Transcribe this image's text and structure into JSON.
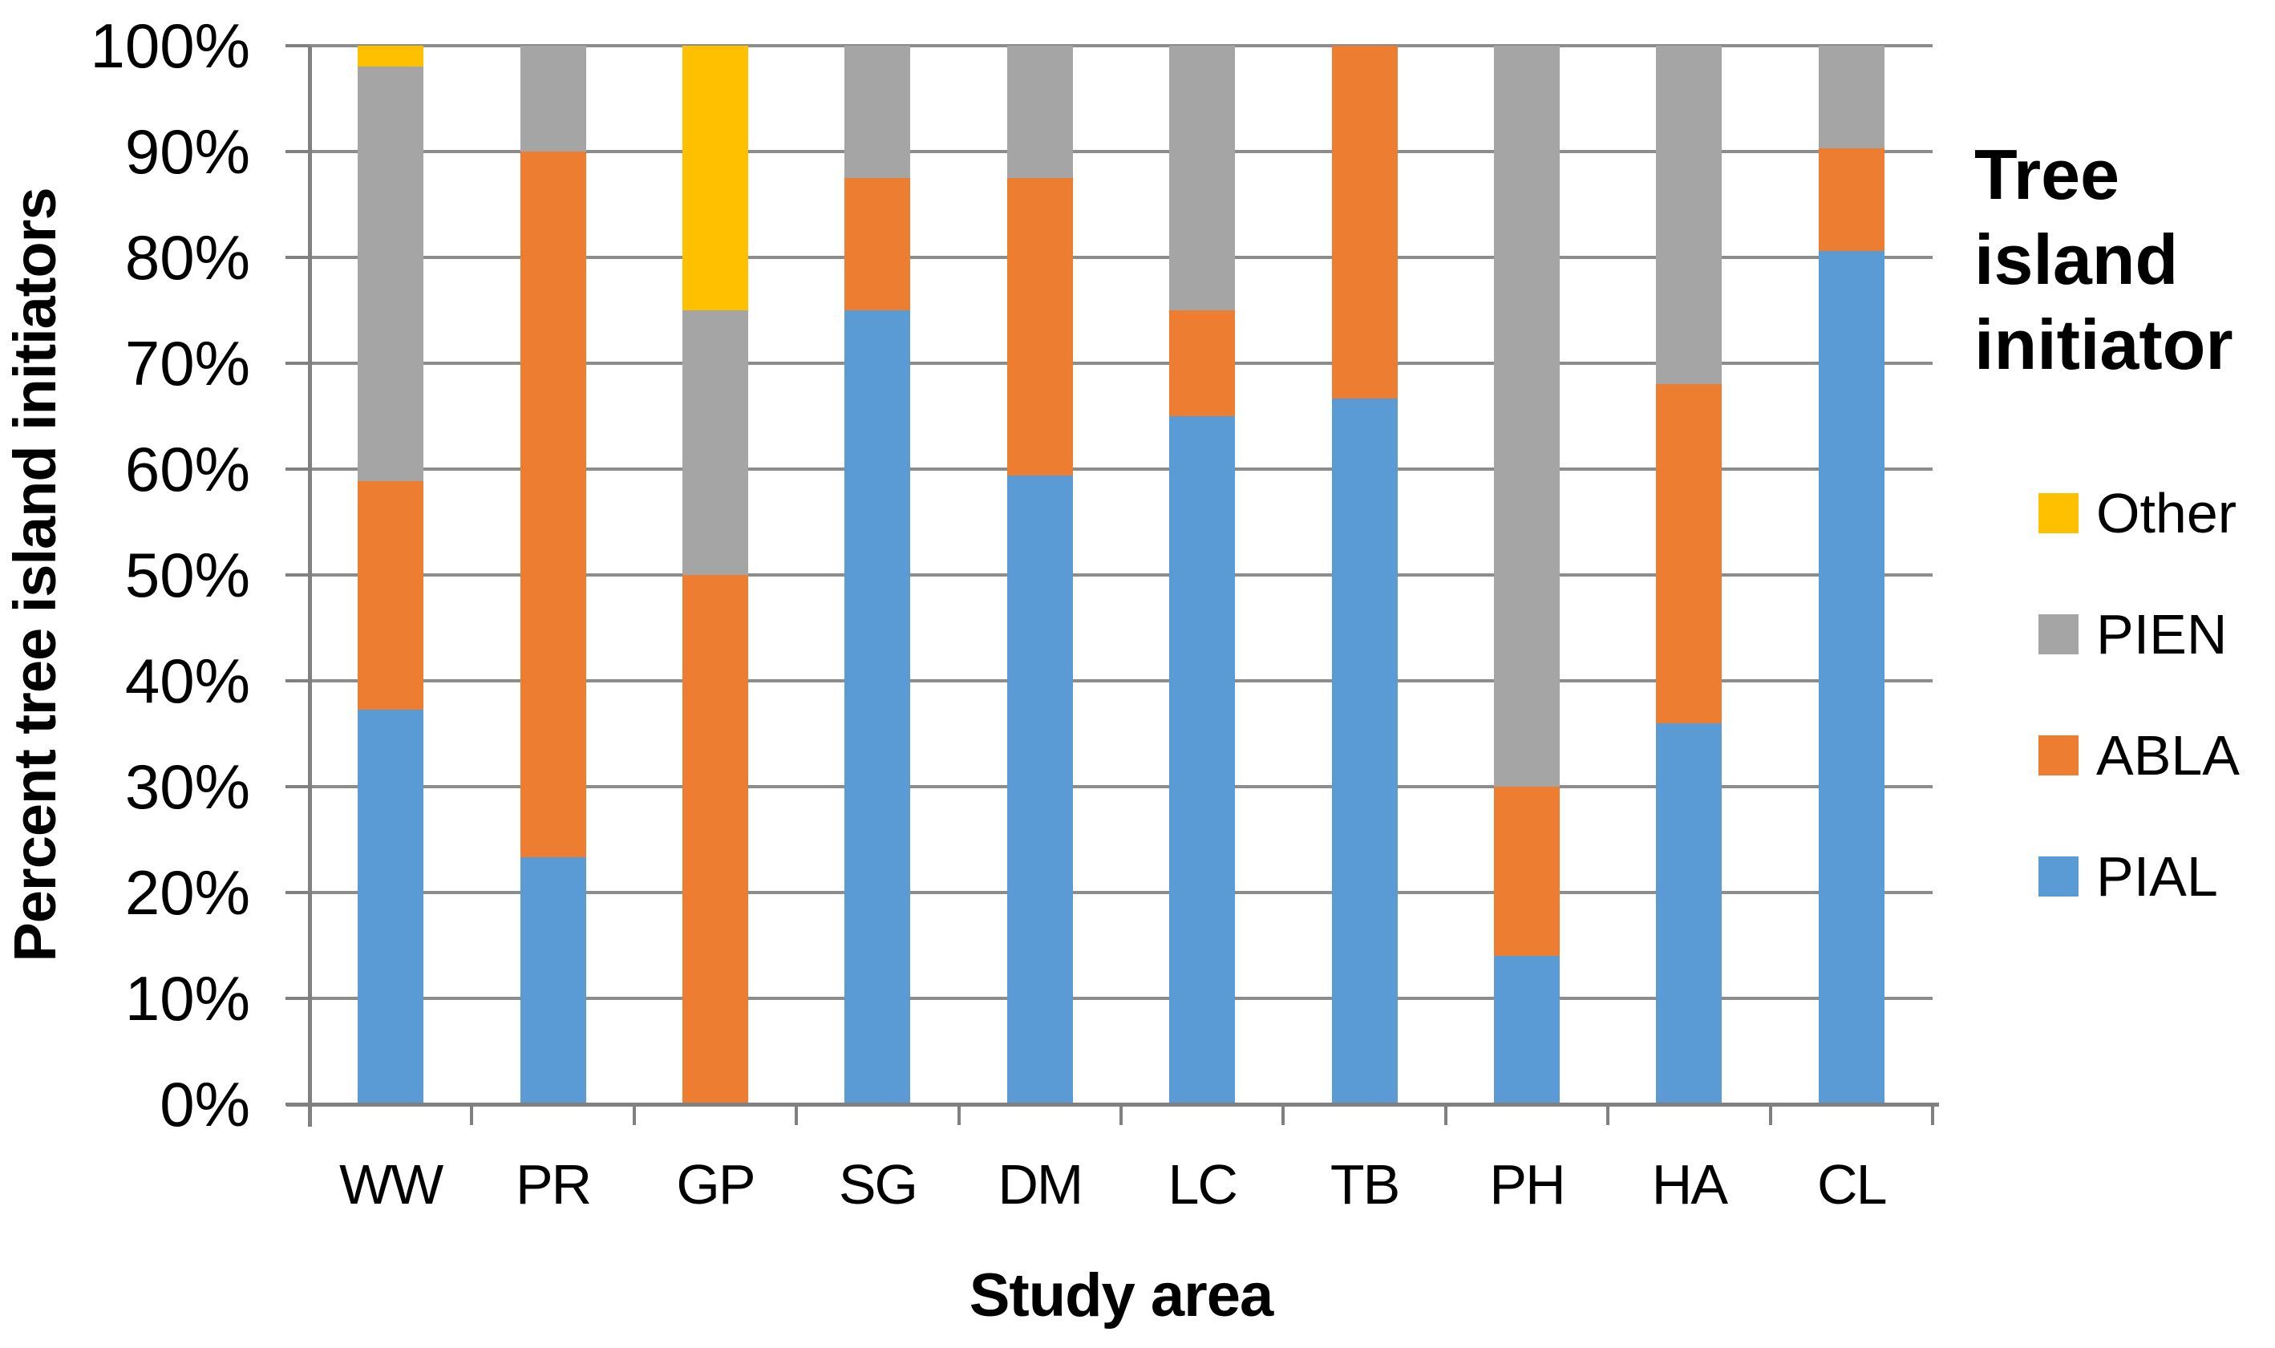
{
  "figure": {
    "background": "#FFFFFF"
  },
  "y_axis": {
    "title": "Percent tree island initiators",
    "tick_labels": [
      "100%",
      "90%",
      "80%",
      "70%",
      "60%",
      "50%",
      "40%",
      "30%",
      "20%",
      "10%",
      "0%"
    ]
  },
  "x_axis": {
    "title": "Study area",
    "tick_labels": [
      "WW",
      "PR",
      "GP",
      "SG",
      "DM",
      "LC",
      "TB",
      "PH",
      "HA",
      "CL"
    ]
  },
  "legend": {
    "title": "Tree island initiator",
    "items": [
      {
        "label": "Other",
        "color": "#FFC000"
      },
      {
        "label": "PIEN",
        "color": "#A5A5A5"
      },
      {
        "label": "ABLA",
        "color": "#ED7D31"
      },
      {
        "label": "PIAL",
        "color": "#5B9BD5"
      }
    ]
  },
  "colors": {
    "gridline": "#8C8C8C",
    "axis": "#808080",
    "text": "#000000"
  },
  "chart_data": {
    "type": "bar",
    "subtype": "100%-stacked-column",
    "title": "",
    "xlabel": "Study area",
    "ylabel": "Percent tree island initiators",
    "categories": [
      "WW",
      "PR",
      "GP",
      "SG",
      "DM",
      "LC",
      "TB",
      "PH",
      "HA",
      "CL"
    ],
    "series": [
      {
        "name": "PIAL",
        "color": "#5B9BD5",
        "values": [
          37.3,
          23.3,
          0,
          75,
          59.4,
          65,
          66.7,
          14,
          36,
          80.6
        ]
      },
      {
        "name": "ABLA",
        "color": "#ED7D31",
        "values": [
          21.6,
          66.7,
          50,
          12.5,
          28.1,
          10,
          33.3,
          16,
          32,
          9.7
        ]
      },
      {
        "name": "PIEN",
        "color": "#A5A5A5",
        "values": [
          39.2,
          10,
          25,
          12.5,
          12.5,
          25,
          0,
          70,
          32,
          9.7
        ]
      },
      {
        "name": "Other",
        "color": "#FFC000",
        "values": [
          2.0,
          0,
          25,
          0,
          0,
          0,
          0,
          0,
          0,
          0
        ]
      }
    ],
    "ylim": [
      0,
      100
    ],
    "ytick_step": 10,
    "grid": true,
    "legend_position": "right",
    "legend_order_top_to_bottom": [
      "Other",
      "PIEN",
      "ABLA",
      "PIAL"
    ]
  }
}
